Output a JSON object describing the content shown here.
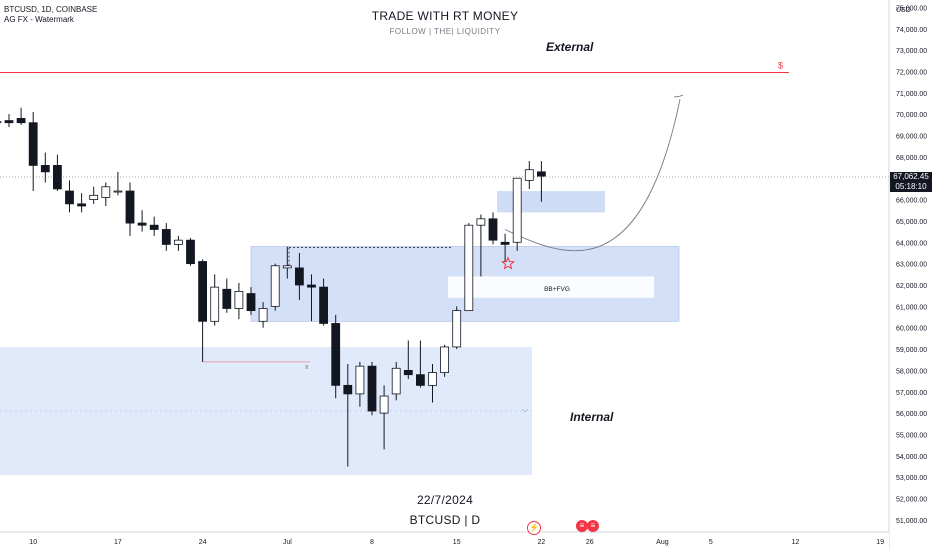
{
  "header": {
    "symbol_line": "BTCUSD, 1D, COINBASE",
    "indicator": "AG FX - Watermark"
  },
  "watermark": {
    "title": "TRADE WITH RT MONEY",
    "subtitle": "FOLLOW   |   THE|   LIQUIDITY",
    "date": "22/7/2024",
    "ticker": "BTCUSD  |  D"
  },
  "annotations": {
    "external": "External",
    "internal": "Internal",
    "fvg": "BB+FVG",
    "dollar": "$",
    "x_mark": "x"
  },
  "price_scale": {
    "currency": "USD",
    "current_price": "67,062.45",
    "countdown": "05:18:10"
  },
  "colors": {
    "up_body": "#ffffff",
    "down_body": "#131722",
    "zone": "#c9d8f5",
    "zone_border": "#9fb8e8",
    "red_line": "#f23645",
    "star": "#f23645",
    "bg": "#ffffff"
  },
  "chart_data": {
    "type": "candlestick",
    "title": "",
    "xlabel": "",
    "ylabel": "",
    "ylim": [
      50300,
      75200
    ],
    "y_ticks": [
      "75,000.00",
      "74,000.00",
      "73,000.00",
      "72,000.00",
      "71,000.00",
      "70,000.00",
      "69,000.00",
      "68,000.00",
      "67,000.00",
      "66,000.00",
      "65,000.00",
      "64,000.00",
      "63,000.00",
      "62,000.00",
      "61,000.00",
      "60,000.00",
      "59,000.00",
      "58,000.00",
      "57,000.00",
      "56,000.00",
      "55,000.00",
      "54,000.00",
      "53,000.00",
      "52,000.00",
      "51,000.00"
    ],
    "y_tick_values": [
      75000,
      74000,
      73000,
      72000,
      71000,
      70000,
      69000,
      68000,
      67000,
      66000,
      65000,
      64000,
      63000,
      62000,
      61000,
      60000,
      59000,
      58000,
      57000,
      56000,
      55000,
      54000,
      53000,
      52000,
      51000
    ],
    "x_ticks": [
      "10",
      "17",
      "24",
      "Jul",
      "8",
      "15",
      "22",
      "26",
      "Aug",
      "5",
      "12",
      "19"
    ],
    "x_tick_days": [
      0,
      7,
      14,
      21,
      28,
      35,
      42,
      46,
      52,
      56,
      63,
      70
    ],
    "candles": [
      {
        "d": -3,
        "o": 69600,
        "h": 69900,
        "l": 69300,
        "c": 69650
      },
      {
        "d": -2,
        "o": 69700,
        "h": 70000,
        "l": 69400,
        "c": 69600
      },
      {
        "d": -1,
        "o": 69800,
        "h": 70300,
        "l": 69500,
        "c": 69600
      },
      {
        "d": 0,
        "o": 69600,
        "h": 70100,
        "l": 66400,
        "c": 67600
      },
      {
        "d": 1,
        "o": 67600,
        "h": 68200,
        "l": 66800,
        "c": 67300
      },
      {
        "d": 2,
        "o": 67600,
        "h": 68100,
        "l": 66400,
        "c": 66500
      },
      {
        "d": 3,
        "o": 66400,
        "h": 66900,
        "l": 65400,
        "c": 65800
      },
      {
        "d": 4,
        "o": 65800,
        "h": 66300,
        "l": 65400,
        "c": 65700
      },
      {
        "d": 5,
        "o": 66000,
        "h": 66600,
        "l": 65800,
        "c": 66200
      },
      {
        "d": 6,
        "o": 66100,
        "h": 66800,
        "l": 65700,
        "c": 66600
      },
      {
        "d": 7,
        "o": 66400,
        "h": 67300,
        "l": 66200,
        "c": 66400
      },
      {
        "d": 8,
        "o": 66400,
        "h": 66800,
        "l": 64300,
        "c": 64900
      },
      {
        "d": 9,
        "o": 64900,
        "h": 65500,
        "l": 64500,
        "c": 64800
      },
      {
        "d": 10,
        "o": 64800,
        "h": 65200,
        "l": 64300,
        "c": 64600
      },
      {
        "d": 11,
        "o": 64600,
        "h": 64900,
        "l": 63600,
        "c": 63900
      },
      {
        "d": 12,
        "o": 63900,
        "h": 64300,
        "l": 63600,
        "c": 64100
      },
      {
        "d": 13,
        "o": 64100,
        "h": 64200,
        "l": 62900,
        "c": 63000
      },
      {
        "d": 14,
        "o": 63100,
        "h": 63200,
        "l": 58400,
        "c": 60300
      },
      {
        "d": 15,
        "o": 60300,
        "h": 62500,
        "l": 60100,
        "c": 61900
      },
      {
        "d": 16,
        "o": 61800,
        "h": 62300,
        "l": 60700,
        "c": 60900
      },
      {
        "d": 17,
        "o": 60900,
        "h": 62100,
        "l": 60400,
        "c": 61700
      },
      {
        "d": 18,
        "o": 61600,
        "h": 61900,
        "l": 60600,
        "c": 60800
      },
      {
        "d": 19,
        "o": 60300,
        "h": 61200,
        "l": 60000,
        "c": 60900
      },
      {
        "d": 20,
        "o": 61000,
        "h": 63000,
        "l": 60800,
        "c": 62900
      },
      {
        "d": 21,
        "o": 62800,
        "h": 63800,
        "l": 62300,
        "c": 62900
      },
      {
        "d": 22,
        "o": 62800,
        "h": 63500,
        "l": 61300,
        "c": 62000
      },
      {
        "d": 23,
        "o": 62000,
        "h": 62500,
        "l": 60300,
        "c": 61900
      },
      {
        "d": 24,
        "o": 61900,
        "h": 62300,
        "l": 60100,
        "c": 60200
      },
      {
        "d": 25,
        "o": 60200,
        "h": 60600,
        "l": 56700,
        "c": 57300
      },
      {
        "d": 26,
        "o": 57300,
        "h": 58300,
        "l": 53500,
        "c": 56900
      },
      {
        "d": 27,
        "o": 56900,
        "h": 58400,
        "l": 56300,
        "c": 58200
      },
      {
        "d": 28,
        "o": 58200,
        "h": 58400,
        "l": 55900,
        "c": 56100
      },
      {
        "d": 29,
        "o": 56000,
        "h": 57300,
        "l": 54300,
        "c": 56800
      },
      {
        "d": 30,
        "o": 56900,
        "h": 58400,
        "l": 56600,
        "c": 58100
      },
      {
        "d": 31,
        "o": 58000,
        "h": 59400,
        "l": 57600,
        "c": 57800
      },
      {
        "d": 32,
        "o": 57800,
        "h": 59400,
        "l": 57200,
        "c": 57300
      },
      {
        "d": 33,
        "o": 57300,
        "h": 58300,
        "l": 56500,
        "c": 57900
      },
      {
        "d": 34,
        "o": 57900,
        "h": 59200,
        "l": 57700,
        "c": 59100
      },
      {
        "d": 35,
        "o": 59100,
        "h": 61000,
        "l": 59000,
        "c": 60800
      },
      {
        "d": 36,
        "o": 60800,
        "h": 64900,
        "l": 60800,
        "c": 64800
      },
      {
        "d": 37,
        "o": 64800,
        "h": 65300,
        "l": 62400,
        "c": 65100
      },
      {
        "d": 38,
        "o": 65100,
        "h": 65400,
        "l": 63900,
        "c": 64100
      },
      {
        "d": 39,
        "o": 64000,
        "h": 64400,
        "l": 63100,
        "c": 63900
      },
      {
        "d": 40,
        "o": 64000,
        "h": 67000,
        "l": 63600,
        "c": 67000
      },
      {
        "d": 41,
        "o": 66900,
        "h": 67800,
        "l": 66500,
        "c": 67400
      },
      {
        "d": 42,
        "o": 67300,
        "h": 67800,
        "l": 65900,
        "c": 67100
      }
    ],
    "current_price": 67062.45,
    "resistance_level": 71950
  }
}
